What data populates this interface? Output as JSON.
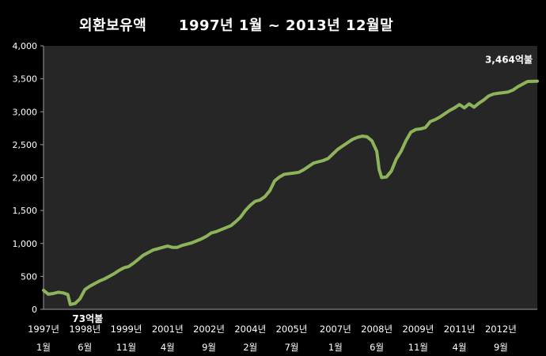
{
  "chart_data": {
    "type": "line",
    "title_main": "외환보유액",
    "title_range": "1997년 1월 ~ 2013년 12월말",
    "ylim": [
      0,
      4000
    ],
    "yticks": [
      "0",
      "500",
      "1,000",
      "1,500",
      "2,000",
      "2,500",
      "3,000",
      "3,500",
      "4,000"
    ],
    "ytick_values": [
      0,
      500,
      1000,
      1500,
      2000,
      2500,
      3000,
      3500,
      4000
    ],
    "grid": false,
    "series_color": "#8db45a",
    "x_labels": [
      {
        "year": "1997년",
        "month": "1월",
        "t": 0
      },
      {
        "year": "1998년",
        "month": "6월",
        "t": 17
      },
      {
        "year": "1999년",
        "month": "11월",
        "t": 34
      },
      {
        "year": "2001년",
        "month": "4월",
        "t": 51
      },
      {
        "year": "2002년",
        "month": "9월",
        "t": 68
      },
      {
        "year": "2004년",
        "month": "2월",
        "t": 85
      },
      {
        "year": "2005년",
        "month": "7월",
        "t": 102
      },
      {
        "year": "2007년",
        "month": "1월",
        "t": 120
      },
      {
        "year": "2008년",
        "month": "6월",
        "t": 137
      },
      {
        "year": "2009년",
        "month": "11월",
        "t": 154
      },
      {
        "year": "2011년",
        "month": "4월",
        "t": 171
      },
      {
        "year": "2012년",
        "month": "9월",
        "t": 188
      }
    ],
    "points": [
      [
        0,
        290
      ],
      [
        2,
        230
      ],
      [
        4,
        240
      ],
      [
        6,
        260
      ],
      [
        8,
        250
      ],
      [
        10,
        225
      ],
      [
        11,
        73
      ],
      [
        13,
        90
      ],
      [
        15,
        160
      ],
      [
        17,
        300
      ],
      [
        19,
        350
      ],
      [
        21,
        390
      ],
      [
        23,
        430
      ],
      [
        25,
        460
      ],
      [
        27,
        500
      ],
      [
        29,
        540
      ],
      [
        31,
        590
      ],
      [
        33,
        630
      ],
      [
        35,
        650
      ],
      [
        37,
        700
      ],
      [
        39,
        760
      ],
      [
        41,
        820
      ],
      [
        43,
        860
      ],
      [
        45,
        900
      ],
      [
        47,
        920
      ],
      [
        49,
        940
      ],
      [
        51,
        960
      ],
      [
        53,
        940
      ],
      [
        55,
        940
      ],
      [
        57,
        970
      ],
      [
        59,
        990
      ],
      [
        61,
        1010
      ],
      [
        63,
        1040
      ],
      [
        65,
        1070
      ],
      [
        67,
        1110
      ],
      [
        69,
        1160
      ],
      [
        71,
        1180
      ],
      [
        73,
        1210
      ],
      [
        75,
        1240
      ],
      [
        77,
        1270
      ],
      [
        79,
        1330
      ],
      [
        81,
        1400
      ],
      [
        83,
        1500
      ],
      [
        85,
        1580
      ],
      [
        87,
        1640
      ],
      [
        89,
        1660
      ],
      [
        91,
        1710
      ],
      [
        93,
        1800
      ],
      [
        95,
        1950
      ],
      [
        97,
        2010
      ],
      [
        99,
        2050
      ],
      [
        101,
        2060
      ],
      [
        103,
        2070
      ],
      [
        105,
        2080
      ],
      [
        107,
        2120
      ],
      [
        109,
        2170
      ],
      [
        111,
        2220
      ],
      [
        113,
        2240
      ],
      [
        115,
        2260
      ],
      [
        117,
        2290
      ],
      [
        119,
        2360
      ],
      [
        121,
        2430
      ],
      [
        123,
        2480
      ],
      [
        125,
        2530
      ],
      [
        127,
        2580
      ],
      [
        129,
        2610
      ],
      [
        131,
        2630
      ],
      [
        133,
        2620
      ],
      [
        135,
        2560
      ],
      [
        137,
        2400
      ],
      [
        138,
        2120
      ],
      [
        139,
        2000
      ],
      [
        141,
        2010
      ],
      [
        143,
        2100
      ],
      [
        145,
        2280
      ],
      [
        147,
        2400
      ],
      [
        149,
        2560
      ],
      [
        151,
        2690
      ],
      [
        153,
        2730
      ],
      [
        155,
        2740
      ],
      [
        157,
        2760
      ],
      [
        159,
        2850
      ],
      [
        161,
        2880
      ],
      [
        163,
        2920
      ],
      [
        165,
        2970
      ],
      [
        167,
        3020
      ],
      [
        169,
        3060
      ],
      [
        171,
        3110
      ],
      [
        173,
        3060
      ],
      [
        175,
        3120
      ],
      [
        177,
        3070
      ],
      [
        179,
        3130
      ],
      [
        181,
        3180
      ],
      [
        183,
        3240
      ],
      [
        185,
        3270
      ],
      [
        187,
        3280
      ],
      [
        189,
        3290
      ],
      [
        191,
        3300
      ],
      [
        193,
        3330
      ],
      [
        195,
        3380
      ],
      [
        197,
        3420
      ],
      [
        199,
        3460
      ],
      [
        203,
        3464
      ]
    ],
    "t_max": 203,
    "annotations": [
      {
        "label": "73억불",
        "anchor": "min"
      },
      {
        "label": "3,464억불",
        "anchor": "end"
      }
    ]
  }
}
